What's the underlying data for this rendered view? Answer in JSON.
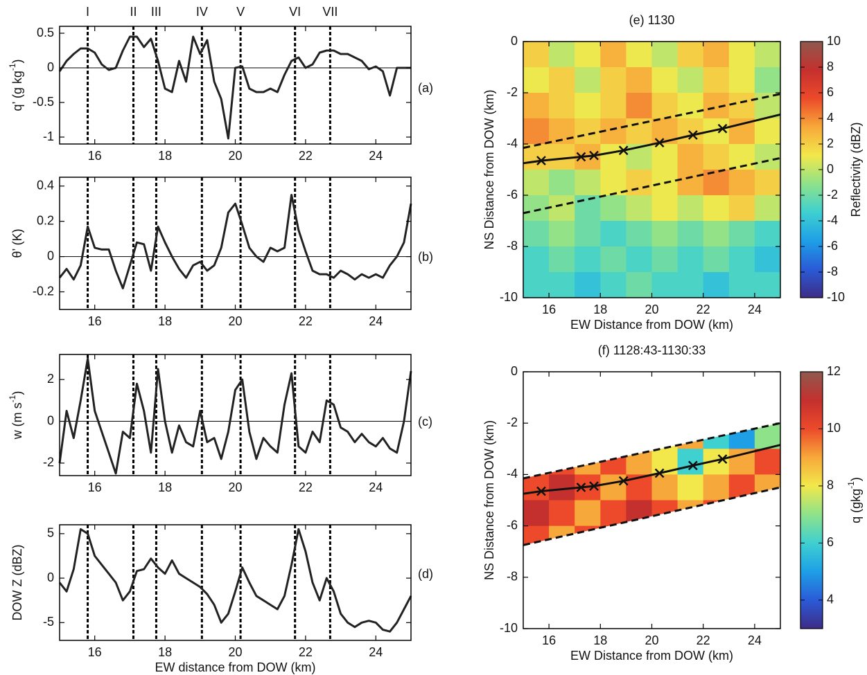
{
  "chart_data": [
    {
      "type": "line",
      "panel_label": "(a)",
      "ylabel": [
        "q’ (g kg",
        "-1",
        ")"
      ],
      "x": [
        15,
        15.2,
        15.4,
        15.6,
        15.8,
        16,
        16.2,
        16.4,
        16.6,
        16.8,
        17,
        17.2,
        17.4,
        17.6,
        17.8,
        18,
        18.2,
        18.4,
        18.6,
        18.8,
        19,
        19.2,
        19.4,
        19.6,
        19.8,
        20,
        20.2,
        20.4,
        20.6,
        20.8,
        21,
        21.2,
        21.4,
        21.6,
        21.8,
        22,
        22.2,
        22.4,
        22.6,
        22.8,
        23,
        23.2,
        23.4,
        23.6,
        23.8,
        24,
        24.2,
        24.4,
        24.6,
        24.8,
        25
      ],
      "values": [
        -0.05,
        0.1,
        0.2,
        0.28,
        0.28,
        0.22,
        0.05,
        -0.03,
        0.0,
        0.25,
        0.45,
        0.45,
        0.3,
        0.42,
        0.1,
        -0.3,
        -0.35,
        0.1,
        -0.2,
        0.45,
        0.2,
        0.4,
        -0.2,
        -0.45,
        -1.02,
        0.0,
        0.02,
        -0.3,
        -0.35,
        -0.35,
        -0.3,
        -0.35,
        -0.1,
        0.1,
        0.15,
        0.0,
        0.05,
        0.22,
        0.25,
        0.25,
        0.2,
        0.2,
        0.15,
        0.1,
        -0.02,
        0.02,
        -0.05,
        -0.4,
        0.0,
        0.0,
        0.0
      ],
      "color": "#222222",
      "xlim": [
        15,
        25
      ],
      "xticks": [
        16,
        18,
        20,
        22,
        24
      ],
      "ylim": [
        -1.1,
        0.6
      ],
      "yticks": [
        -1,
        -0.5,
        0,
        0.5
      ],
      "zero_line": true,
      "vlines": [
        15.8,
        17.1,
        17.75,
        19.05,
        20.15,
        21.7,
        22.7
      ],
      "vline_labels": [
        "I",
        "II",
        "III",
        "IV",
        "V",
        "VI",
        "VII"
      ]
    },
    {
      "type": "line",
      "panel_label": "(b)",
      "ylabel": "θ’ (K)",
      "x": [
        15,
        15.2,
        15.4,
        15.6,
        15.8,
        16,
        16.2,
        16.4,
        16.6,
        16.8,
        17,
        17.2,
        17.4,
        17.6,
        17.8,
        18,
        18.2,
        18.4,
        18.6,
        18.8,
        19,
        19.2,
        19.4,
        19.6,
        19.8,
        20,
        20.2,
        20.4,
        20.6,
        20.8,
        21,
        21.2,
        21.4,
        21.6,
        21.8,
        22,
        22.2,
        22.4,
        22.6,
        22.8,
        23,
        23.2,
        23.4,
        23.6,
        23.8,
        24,
        24.2,
        24.4,
        24.6,
        24.8,
        25
      ],
      "values": [
        -0.12,
        -0.07,
        -0.13,
        -0.05,
        0.17,
        0.05,
        0.04,
        0.04,
        -0.08,
        -0.18,
        -0.05,
        0.08,
        0.07,
        -0.08,
        0.17,
        0.08,
        0.0,
        -0.07,
        -0.12,
        -0.05,
        -0.03,
        -0.08,
        -0.05,
        0.05,
        0.25,
        0.3,
        0.18,
        0.05,
        0.0,
        -0.03,
        0.05,
        0.03,
        0.05,
        0.35,
        0.15,
        0.03,
        -0.08,
        -0.1,
        -0.1,
        -0.12,
        -0.08,
        -0.1,
        -0.13,
        -0.1,
        -0.12,
        -0.1,
        -0.12,
        -0.05,
        0.0,
        0.08,
        0.3
      ],
      "color": "#222222",
      "xlim": [
        15,
        25
      ],
      "xticks": [
        16,
        18,
        20,
        22,
        24
      ],
      "ylim": [
        -0.3,
        0.45
      ],
      "yticks": [
        -0.2,
        0,
        0.2,
        0.4
      ],
      "zero_line": true,
      "vlines": [
        15.8,
        17.1,
        17.75,
        19.05,
        20.15,
        21.7,
        22.7
      ]
    },
    {
      "type": "line",
      "panel_label": "(c)",
      "ylabel": [
        "w (m s",
        "-1",
        ")"
      ],
      "x": [
        15,
        15.2,
        15.4,
        15.6,
        15.8,
        16,
        16.2,
        16.4,
        16.6,
        16.8,
        17,
        17.2,
        17.4,
        17.6,
        17.8,
        18,
        18.2,
        18.4,
        18.6,
        18.8,
        19,
        19.2,
        19.4,
        19.6,
        19.8,
        20,
        20.2,
        20.4,
        20.6,
        20.8,
        21,
        21.2,
        21.4,
        21.6,
        21.8,
        22,
        22.2,
        22.4,
        22.6,
        22.8,
        23,
        23.2,
        23.4,
        23.6,
        23.8,
        24,
        24.2,
        24.4,
        24.6,
        24.8,
        25
      ],
      "values": [
        -2.0,
        0.5,
        -0.8,
        1.0,
        3.0,
        0.5,
        -0.5,
        -1.5,
        -2.5,
        -0.5,
        -0.8,
        1.8,
        0.5,
        -1.5,
        2.5,
        0.0,
        -1.5,
        -0.2,
        -1.0,
        -1.2,
        0.5,
        -1.0,
        -0.8,
        -1.8,
        -0.5,
        1.5,
        2.0,
        -0.5,
        -1.8,
        -0.8,
        -1.2,
        -1.5,
        0.8,
        2.3,
        -1.2,
        -1.5,
        -0.5,
        -1.0,
        1.0,
        0.8,
        -0.3,
        -0.5,
        -1.0,
        -0.6,
        -1.0,
        -1.2,
        -0.8,
        -1.3,
        -1.5,
        0.0,
        2.4
      ],
      "color": "#222222",
      "xlim": [
        15,
        25
      ],
      "xticks": [
        16,
        18,
        20,
        22,
        24
      ],
      "ylim": [
        -2.6,
        3.2
      ],
      "yticks": [
        -2,
        0,
        2
      ],
      "zero_line": true,
      "vlines": [
        15.8,
        17.1,
        17.75,
        19.05,
        20.15,
        21.7,
        22.7
      ]
    },
    {
      "type": "line",
      "panel_label": "(d)",
      "ylabel": "DOW Z (dBZ)",
      "xlabel": "EW distance from DOW (km)",
      "x": [
        15,
        15.2,
        15.4,
        15.6,
        15.8,
        16,
        16.2,
        16.4,
        16.6,
        16.8,
        17,
        17.2,
        17.4,
        17.6,
        17.8,
        18,
        18.2,
        18.4,
        18.6,
        18.8,
        19,
        19.2,
        19.4,
        19.6,
        19.8,
        20,
        20.2,
        20.4,
        20.6,
        20.8,
        21,
        21.2,
        21.4,
        21.6,
        21.8,
        22,
        22.2,
        22.4,
        22.6,
        22.8,
        23,
        23.2,
        23.4,
        23.6,
        23.8,
        24,
        24.2,
        24.4,
        24.6,
        24.8,
        25
      ],
      "values": [
        -0.5,
        -1.5,
        1.0,
        5.5,
        5.0,
        2.5,
        1.5,
        0.5,
        -0.5,
        -2.5,
        -1.5,
        0.8,
        1.0,
        2.2,
        1.2,
        0.5,
        2.0,
        0.5,
        0.0,
        -0.5,
        -1.0,
        -1.8,
        -3.0,
        -5.0,
        -4.0,
        -1.5,
        1.2,
        -0.5,
        -2.0,
        -2.5,
        -3.0,
        -3.5,
        -2.0,
        1.5,
        5.5,
        3.0,
        -0.5,
        -2.5,
        0.0,
        -1.5,
        -4.0,
        -5.0,
        -5.5,
        -5.0,
        -4.8,
        -5.0,
        -5.8,
        -6.0,
        -5.0,
        -3.5,
        -2.0
      ],
      "color": "#222222",
      "xlim": [
        15,
        25
      ],
      "xticks": [
        16,
        18,
        20,
        22,
        24
      ],
      "ylim": [
        -7,
        6
      ],
      "yticks": [
        -5,
        0,
        5
      ],
      "zero_line": false,
      "vlines": [
        15.8,
        17.1,
        17.75,
        19.05,
        20.15,
        21.7,
        22.7
      ]
    },
    {
      "type": "heatmap",
      "title": "(e) 1130",
      "xlabel": "EW Distance from DOW (km)",
      "ylabel": "NS Distance from DOW (km)",
      "colorbar_label": "Reflectivity (dBZ)",
      "xlim": [
        15,
        25
      ],
      "xticks": [
        16,
        18,
        20,
        22,
        24
      ],
      "ylim": [
        -10,
        0
      ],
      "yticks": [
        0,
        -2,
        -4,
        -6,
        -8,
        -10
      ],
      "clim": [
        -10,
        10
      ],
      "cticks": [
        10,
        8,
        6,
        4,
        2,
        0,
        -2,
        -4,
        -6,
        -8,
        -10
      ],
      "colormap": [
        "#3e2c86",
        "#2a5bd7",
        "#1e9fe6",
        "#3fd0d0",
        "#8ee28a",
        "#f2e84b",
        "#f7a83a",
        "#ec4a2a",
        "#c4302e",
        "#8f5a4e"
      ],
      "clip_to_band": false,
      "z": [
        [
          2,
          0,
          1,
          3,
          1,
          0,
          2,
          3,
          1,
          0
        ],
        [
          1,
          2,
          0,
          2,
          3,
          1,
          0,
          2,
          1,
          -1
        ],
        [
          3,
          2,
          1,
          2,
          4,
          2,
          1,
          3,
          2,
          0
        ],
        [
          4,
          3,
          2,
          3,
          2,
          3,
          2,
          1,
          3,
          1
        ],
        [
          2,
          2,
          3,
          1,
          0,
          1,
          3,
          2,
          1,
          0
        ],
        [
          0,
          -1,
          0,
          1,
          2,
          1,
          3,
          4,
          3,
          2
        ],
        [
          -1,
          0,
          -2,
          -1,
          0,
          1,
          0,
          1,
          2,
          0
        ],
        [
          -2,
          -1,
          -2,
          -3,
          -2,
          -1,
          -2,
          -1,
          -2,
          -3
        ],
        [
          -3,
          -2,
          -3,
          -2,
          -3,
          -2,
          -3,
          -2,
          -3,
          -4
        ],
        [
          -3,
          -3,
          -4,
          -3,
          -2,
          -3,
          -3,
          -4,
          -3,
          -3
        ]
      ],
      "lines": [
        {
          "style": "solid",
          "x": [
            15,
            15.7,
            17.25,
            17.75,
            18.9,
            20.3,
            21.6,
            22.75,
            25
          ],
          "y": [
            -4.75,
            -4.65,
            -4.5,
            -4.45,
            -4.25,
            -3.95,
            -3.65,
            -3.4,
            -2.85
          ]
        },
        {
          "style": "dashed",
          "x": [
            15,
            25
          ],
          "y": [
            -4.15,
            -2.05
          ]
        },
        {
          "style": "dashed",
          "x": [
            15,
            25
          ],
          "y": [
            -6.7,
            -4.55
          ]
        }
      ],
      "markers": {
        "x": [
          15.7,
          17.25,
          17.75,
          18.9,
          20.3,
          21.6,
          22.75
        ],
        "y": [
          -4.65,
          -4.5,
          -4.45,
          -4.25,
          -3.95,
          -3.65,
          -3.4
        ]
      }
    },
    {
      "type": "heatmap",
      "title": "(f) 1128:43-1130:33",
      "xlabel": "EW Distance from DOW (km)",
      "ylabel": "NS Distance from DOW (km)",
      "colorbar_label": [
        "q (gkg",
        "-1",
        ")"
      ],
      "xlim": [
        15,
        25
      ],
      "xticks": [
        16,
        18,
        20,
        22,
        24
      ],
      "ylim": [
        -10,
        0
      ],
      "yticks": [
        0,
        -2,
        -4,
        -6,
        -8,
        -10
      ],
      "clim": [
        3,
        12
      ],
      "cticks": [
        12,
        10,
        8,
        6,
        4
      ],
      "colormap": [
        "#3e2c86",
        "#2a5bd7",
        "#1e9fe6",
        "#3fd0d0",
        "#8ee28a",
        "#f2e84b",
        "#f7a83a",
        "#ec4a2a",
        "#c4302e",
        "#8f5a4e"
      ],
      "clip_to_band": true,
      "z": [
        [
          null,
          null,
          null,
          null,
          null,
          null,
          null,
          null,
          null,
          null
        ],
        [
          null,
          null,
          null,
          null,
          null,
          null,
          null,
          null,
          null,
          null
        ],
        [
          9,
          9,
          9,
          9,
          9,
          8,
          9,
          6,
          5,
          7
        ],
        [
          9,
          10,
          9,
          10,
          9,
          8,
          6,
          8,
          9,
          10
        ],
        [
          10,
          11,
          10,
          9,
          10,
          9,
          8,
          9,
          10,
          9
        ],
        [
          11,
          10,
          9,
          10,
          11,
          10,
          9,
          10,
          9,
          10
        ],
        [
          10,
          9,
          10,
          11,
          10,
          9,
          10,
          10,
          9,
          9
        ],
        [
          null,
          null,
          null,
          null,
          null,
          null,
          null,
          null,
          null,
          null
        ],
        [
          null,
          null,
          null,
          null,
          null,
          null,
          null,
          null,
          null,
          null
        ],
        [
          null,
          null,
          null,
          null,
          null,
          null,
          null,
          null,
          null,
          null
        ]
      ],
      "lines": [
        {
          "style": "solid",
          "x": [
            15,
            15.7,
            17.25,
            17.75,
            18.9,
            20.3,
            21.6,
            22.75,
            25
          ],
          "y": [
            -4.75,
            -4.65,
            -4.5,
            -4.45,
            -4.25,
            -3.95,
            -3.65,
            -3.4,
            -2.85
          ]
        },
        {
          "style": "dashed",
          "x": [
            15,
            25
          ],
          "y": [
            -4.15,
            -2.0
          ]
        },
        {
          "style": "dashed",
          "x": [
            15,
            25
          ],
          "y": [
            -6.75,
            -4.5
          ]
        }
      ],
      "markers": {
        "x": [
          15.7,
          17.25,
          17.75,
          18.9,
          20.3,
          21.6,
          22.75
        ],
        "y": [
          -4.65,
          -4.5,
          -4.45,
          -4.25,
          -3.95,
          -3.65,
          -3.4
        ]
      }
    }
  ]
}
